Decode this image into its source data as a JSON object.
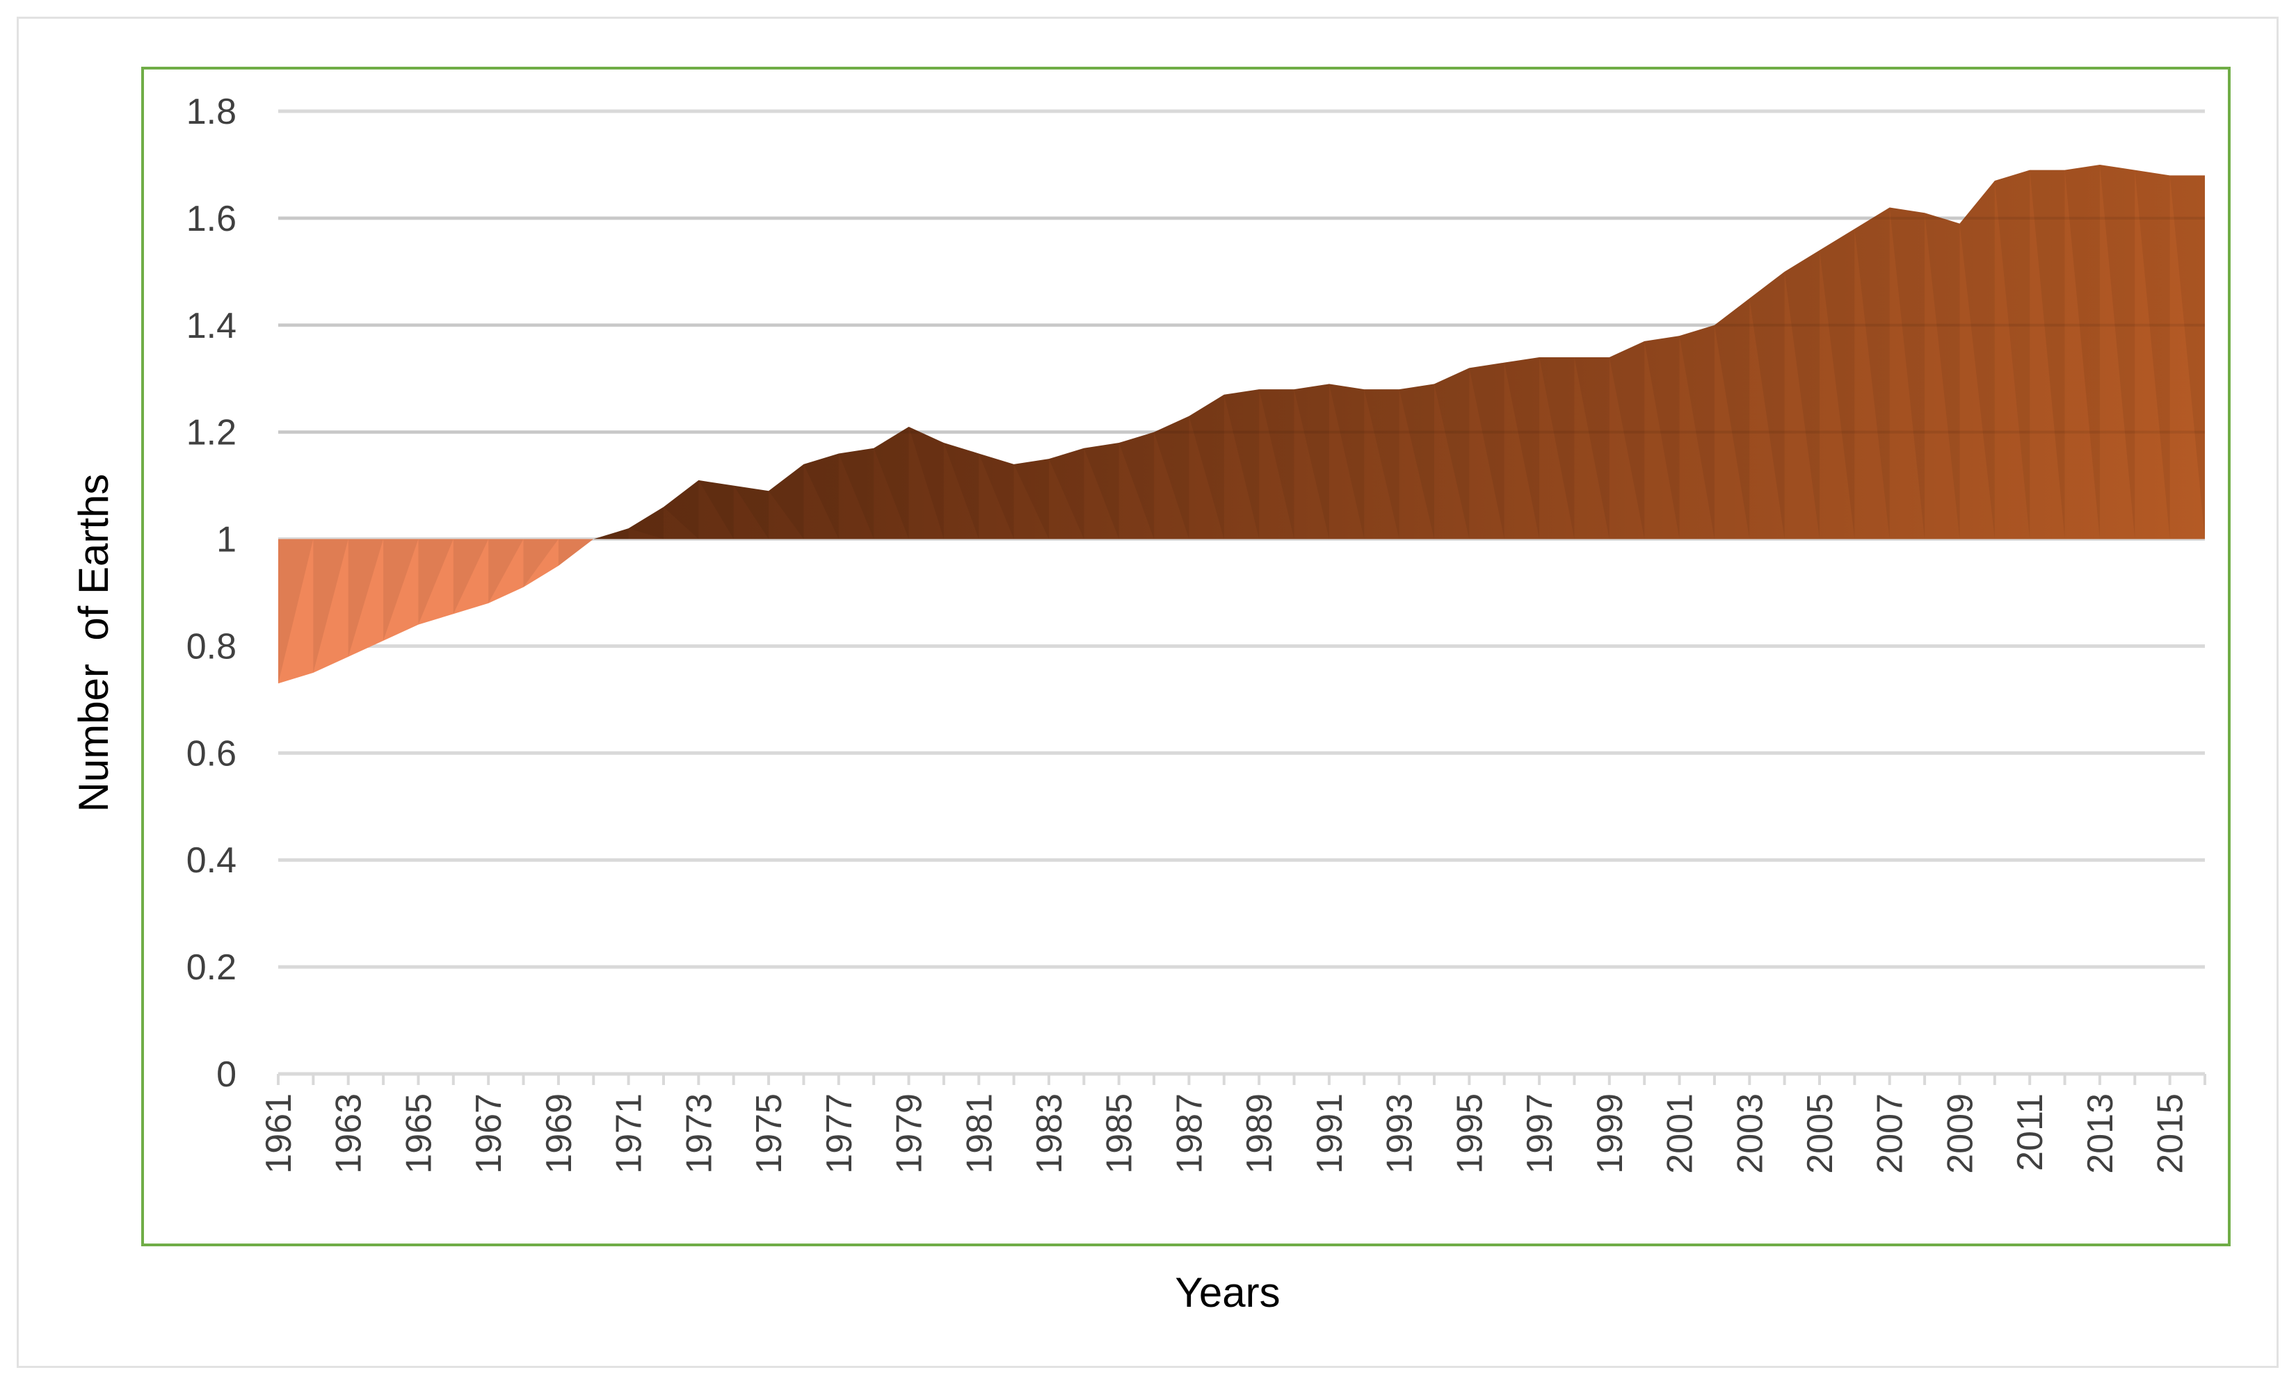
{
  "chart_data": {
    "type": "area",
    "title": "",
    "xlabel": "Years",
    "ylabel": "Number  of Earths",
    "baseline": 1,
    "ylim": [
      0,
      1.8
    ],
    "yticks": [
      "0",
      "0.2",
      "0.4",
      "0.6",
      "0.8",
      "1",
      "1.2",
      "1.4",
      "1.6",
      "1.8"
    ],
    "ytick_values": [
      0,
      0.2,
      0.4,
      0.6,
      0.8,
      1,
      1.2,
      1.4,
      1.6,
      1.8
    ],
    "grid": true,
    "legend": "none",
    "x": [
      1961,
      1962,
      1963,
      1964,
      1965,
      1966,
      1967,
      1968,
      1969,
      1970,
      1971,
      1972,
      1973,
      1974,
      1975,
      1976,
      1977,
      1978,
      1979,
      1980,
      1981,
      1982,
      1983,
      1984,
      1985,
      1986,
      1987,
      1988,
      1989,
      1990,
      1991,
      1992,
      1993,
      1994,
      1995,
      1996,
      1997,
      1998,
      1999,
      2000,
      2001,
      2002,
      2003,
      2004,
      2005,
      2006,
      2007,
      2008,
      2009,
      2010,
      2011,
      2012,
      2013,
      2014,
      2015,
      2016
    ],
    "x_tick_labels": [
      "1961",
      "1963",
      "1965",
      "1967",
      "1969",
      "1971",
      "1973",
      "1975",
      "1977",
      "1979",
      "1981",
      "1983",
      "1985",
      "1987",
      "1989",
      "1991",
      "1993",
      "1995",
      "1997",
      "1999",
      "2001",
      "2003",
      "2005",
      "2007",
      "2009",
      "2011",
      "2013",
      "2015"
    ],
    "values": [
      0.73,
      0.75,
      0.78,
      0.81,
      0.84,
      0.86,
      0.88,
      0.91,
      0.95,
      1.0,
      1.02,
      1.06,
      1.11,
      1.1,
      1.09,
      1.14,
      1.16,
      1.17,
      1.21,
      1.18,
      1.16,
      1.14,
      1.15,
      1.17,
      1.18,
      1.2,
      1.23,
      1.27,
      1.28,
      1.28,
      1.29,
      1.28,
      1.28,
      1.29,
      1.32,
      1.33,
      1.34,
      1.34,
      1.34,
      1.37,
      1.38,
      1.4,
      1.45,
      1.5,
      1.54,
      1.58,
      1.62,
      1.61,
      1.59,
      1.67,
      1.69,
      1.69,
      1.7,
      1.69,
      1.68,
      1.68
    ],
    "colors": {
      "deficit": "#f0875a",
      "overshoot_light": "#b45a25",
      "overshoot_dark": "#5a2a10",
      "gridline": "#d9d9d9",
      "plot_border": "#70ad47",
      "outer_border": "#e2e2e2"
    }
  }
}
